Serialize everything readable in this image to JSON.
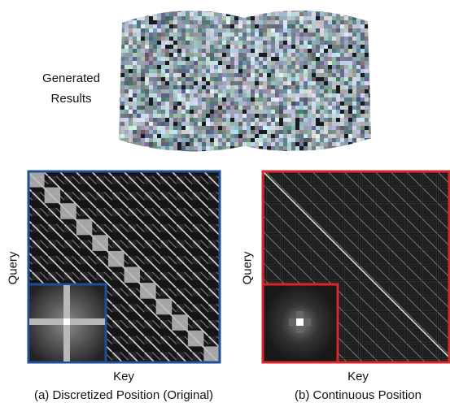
{
  "generated_label": "Generated Results",
  "panels": [
    {
      "y_label": "Query",
      "x_label": "Key",
      "caption": "(a) Discretized Position (Original)"
    },
    {
      "y_label": "Query",
      "x_label": "Key",
      "caption": "(b) Continuous Position"
    }
  ]
}
